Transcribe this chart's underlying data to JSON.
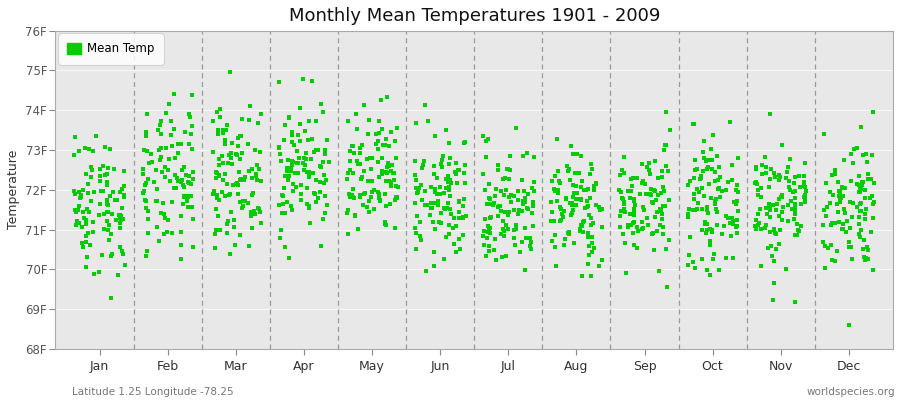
{
  "title": "Monthly Mean Temperatures 1901 - 2009",
  "ylabel": "Temperature",
  "ylim": [
    68,
    76
  ],
  "yticks": [
    68,
    69,
    70,
    71,
    72,
    73,
    74,
    75,
    76
  ],
  "ytick_labels": [
    "68F",
    "69F",
    "70F",
    "71F",
    "72F",
    "73F",
    "74F",
    "75F",
    "76F"
  ],
  "months": [
    "Jan",
    "Feb",
    "Mar",
    "Apr",
    "May",
    "Jun",
    "Jul",
    "Aug",
    "Sep",
    "Oct",
    "Nov",
    "Dec"
  ],
  "dot_color": "#00CC00",
  "plot_bg_color": "#E8E8E8",
  "fig_bg_color": "#FFFFFF",
  "legend_label": "Mean Temp",
  "bottom_left": "Latitude 1.25 Longitude -78.25",
  "bottom_right": "worldspecies.org",
  "num_years": 109,
  "seed": 42,
  "monthly_means": [
    71.65,
    72.15,
    72.35,
    72.55,
    72.25,
    71.75,
    71.55,
    71.55,
    71.65,
    71.65,
    71.65,
    71.65
  ],
  "monthly_stds": [
    0.9,
    0.95,
    0.85,
    0.85,
    0.82,
    0.8,
    0.78,
    0.75,
    0.72,
    0.75,
    0.82,
    0.88
  ]
}
